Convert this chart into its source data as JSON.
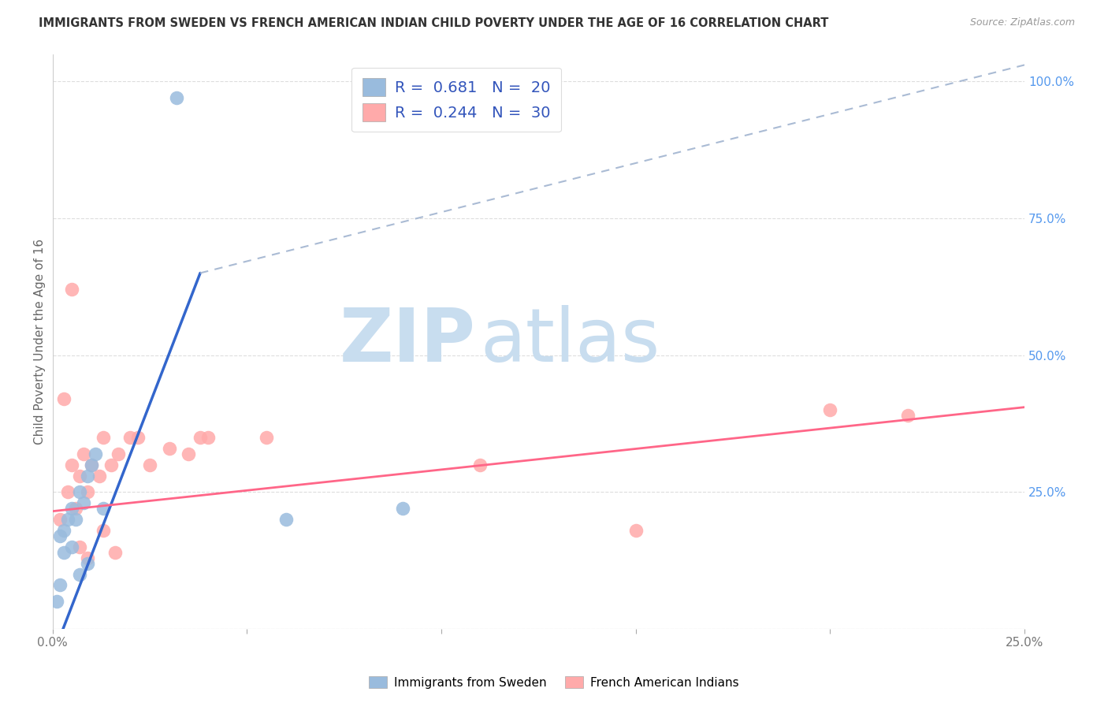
{
  "title": "IMMIGRANTS FROM SWEDEN VS FRENCH AMERICAN INDIAN CHILD POVERTY UNDER THE AGE OF 16 CORRELATION CHART",
  "source": "Source: ZipAtlas.com",
  "ylabel": "Child Poverty Under the Age of 16",
  "xlim": [
    0.0,
    0.25
  ],
  "ylim": [
    0.0,
    1.05
  ],
  "legend_R_blue": "0.681",
  "legend_N_blue": "20",
  "legend_R_pink": "0.244",
  "legend_N_pink": "30",
  "blue_color": "#99BBDD",
  "pink_color": "#FFAAAA",
  "blue_scatter": [
    [
      0.001,
      0.05
    ],
    [
      0.002,
      0.08
    ],
    [
      0.003,
      0.18
    ],
    [
      0.004,
      0.2
    ],
    [
      0.005,
      0.22
    ],
    [
      0.006,
      0.2
    ],
    [
      0.007,
      0.25
    ],
    [
      0.008,
      0.23
    ],
    [
      0.009,
      0.28
    ],
    [
      0.01,
      0.3
    ],
    [
      0.011,
      0.32
    ],
    [
      0.013,
      0.22
    ],
    [
      0.003,
      0.14
    ],
    [
      0.005,
      0.15
    ],
    [
      0.002,
      0.17
    ],
    [
      0.007,
      0.1
    ],
    [
      0.009,
      0.12
    ],
    [
      0.032,
      0.97
    ],
    [
      0.06,
      0.2
    ],
    [
      0.09,
      0.22
    ]
  ],
  "pink_scatter": [
    [
      0.002,
      0.2
    ],
    [
      0.004,
      0.25
    ],
    [
      0.005,
      0.3
    ],
    [
      0.006,
      0.22
    ],
    [
      0.007,
      0.28
    ],
    [
      0.008,
      0.32
    ],
    [
      0.009,
      0.25
    ],
    [
      0.01,
      0.3
    ],
    [
      0.012,
      0.28
    ],
    [
      0.013,
      0.35
    ],
    [
      0.015,
      0.3
    ],
    [
      0.017,
      0.32
    ],
    [
      0.02,
      0.35
    ],
    [
      0.025,
      0.3
    ],
    [
      0.03,
      0.33
    ],
    [
      0.035,
      0.32
    ],
    [
      0.04,
      0.35
    ],
    [
      0.003,
      0.42
    ],
    [
      0.005,
      0.62
    ],
    [
      0.022,
      0.35
    ],
    [
      0.038,
      0.35
    ],
    [
      0.055,
      0.35
    ],
    [
      0.11,
      0.3
    ],
    [
      0.15,
      0.18
    ],
    [
      0.2,
      0.4
    ],
    [
      0.22,
      0.39
    ],
    [
      0.007,
      0.15
    ],
    [
      0.009,
      0.13
    ],
    [
      0.013,
      0.18
    ],
    [
      0.016,
      0.14
    ]
  ],
  "blue_line_solid": [
    [
      0.0,
      -0.05
    ],
    [
      0.038,
      0.65
    ]
  ],
  "blue_line_dashed": [
    [
      0.038,
      0.65
    ],
    [
      0.25,
      1.03
    ]
  ],
  "pink_line": [
    [
      0.0,
      0.215
    ],
    [
      0.25,
      0.405
    ]
  ],
  "watermark_ZIP": "ZIP",
  "watermark_atlas": "atlas",
  "watermark_color_ZIP": "#C8DDEF",
  "watermark_color_atlas": "#C8DDEF",
  "background_color": "#FFFFFF"
}
